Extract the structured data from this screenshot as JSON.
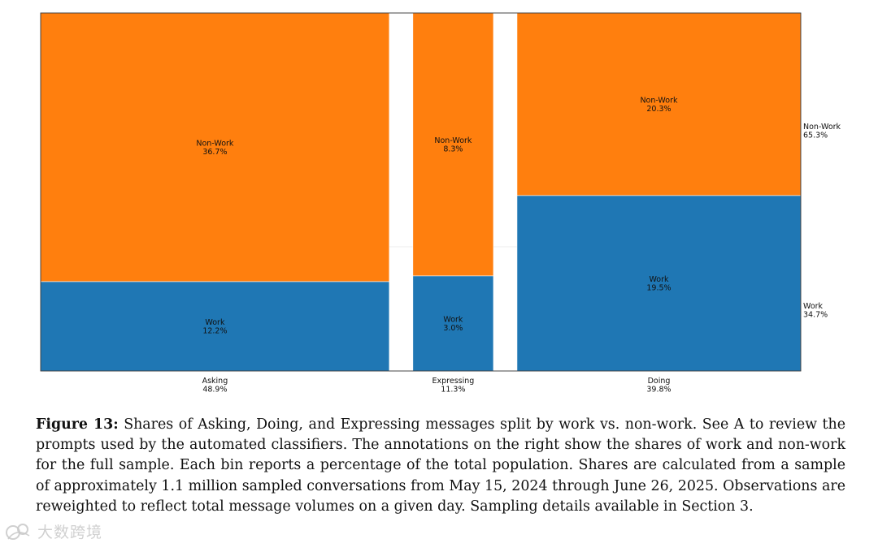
{
  "chart_data": {
    "type": "mosaic",
    "title": "",
    "categories": [
      {
        "name": "Asking",
        "total": "48.9%",
        "work_share": 12.2,
        "nonwork_share": 36.7,
        "work_label": "12.2%",
        "nonwork_label": "36.7%"
      },
      {
        "name": "Expressing",
        "total": "11.3%",
        "work_share": 3.0,
        "nonwork_share": 8.3,
        "work_label": "3.0%",
        "nonwork_label": "8.3%"
      },
      {
        "name": "Doing",
        "total": "39.8%",
        "work_share": 19.5,
        "nonwork_share": 20.3,
        "work_label": "19.5%",
        "nonwork_label": "20.3%"
      }
    ],
    "series": [
      {
        "name": "Work",
        "color": "#1f77b4"
      },
      {
        "name": "Non-Work",
        "color": "#ff7f0e"
      }
    ],
    "overall": {
      "work_label": "Work",
      "work_value": "34.7%",
      "nonwork_label": "Non-Work",
      "nonwork_value": "65.3%"
    }
  },
  "caption": {
    "label": "Figure 13:",
    "text": "Shares of Asking, Doing, and Expressing messages split by work vs. non-work. See A to review the prompts used by the automated classifiers. The annotations on the right show the shares of work and non-work for the full sample. Each bin reports a percentage of the total population. Shares are calculated from a sample of approximately 1.1 million sampled conversations from May 15, 2024 through June 26, 2025. Observations are reweighted to reflect total message volumes on a given day. Sampling details available in Section 3."
  },
  "watermark": {
    "text": "大数跨境"
  }
}
